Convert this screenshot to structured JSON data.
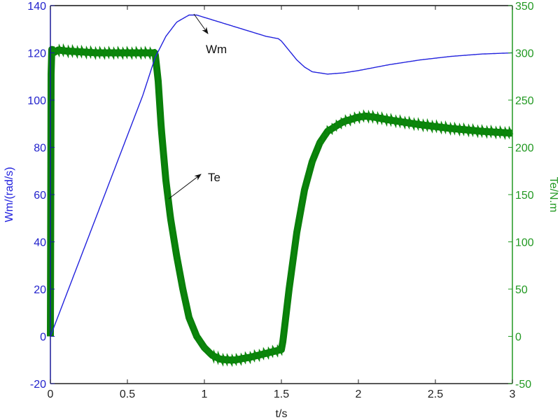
{
  "chart_data": {
    "type": "line",
    "title": "",
    "xlabel": "t/s",
    "xlim": [
      0,
      3
    ],
    "x_ticks": [
      0,
      0.5,
      1,
      1.5,
      2,
      2.5,
      3
    ],
    "x_tick_labels": [
      "0",
      "0.5",
      "1",
      "1.5",
      "2",
      "2.5",
      "3"
    ],
    "y_left": {
      "label": "Wm/(rad/s)",
      "ylim": [
        -20,
        140
      ],
      "ticks": [
        -20,
        0,
        20,
        40,
        60,
        80,
        100,
        120,
        140
      ],
      "tick_labels": [
        "-20",
        "0",
        "20",
        "40",
        "60",
        "80",
        "100",
        "120",
        "140"
      ],
      "color": "#0000ff"
    },
    "y_right": {
      "label": "Te/N.m",
      "ylim": [
        -50,
        350
      ],
      "ticks": [
        -50,
        0,
        50,
        100,
        150,
        200,
        250,
        300,
        350
      ],
      "tick_labels": [
        "-50",
        "0",
        "50",
        "100",
        "150",
        "200",
        "250",
        "300",
        "350"
      ],
      "color": "#008000"
    },
    "grid": false,
    "series": [
      {
        "name": "Wm",
        "axis": "left",
        "color": "#2222dd",
        "x": [
          0,
          0.1,
          0.2,
          0.3,
          0.4,
          0.5,
          0.6,
          0.68,
          0.75,
          0.82,
          0.9,
          0.95,
          1.0,
          1.1,
          1.2,
          1.3,
          1.4,
          1.48,
          1.5,
          1.55,
          1.6,
          1.65,
          1.7,
          1.8,
          1.9,
          2.0,
          2.2,
          2.4,
          2.6,
          2.8,
          3.0
        ],
        "values": [
          0,
          17,
          34,
          51,
          68,
          85,
          102,
          118,
          127,
          133,
          136,
          136,
          135,
          133,
          131,
          129,
          127,
          126,
          125,
          121,
          117,
          114,
          112,
          111,
          111.5,
          112.5,
          115,
          117,
          118.5,
          119.5,
          120
        ]
      },
      {
        "name": "Te",
        "axis": "right",
        "color": "#008000",
        "band_width": 10,
        "x": [
          0,
          0.005,
          0.02,
          0.05,
          0.1,
          0.2,
          0.3,
          0.4,
          0.5,
          0.6,
          0.68,
          0.7,
          0.72,
          0.75,
          0.78,
          0.82,
          0.86,
          0.9,
          0.95,
          1.0,
          1.05,
          1.1,
          1.15,
          1.2,
          1.3,
          1.4,
          1.5,
          1.51,
          1.55,
          1.6,
          1.65,
          1.7,
          1.75,
          1.8,
          1.9,
          2.0,
          2.05,
          2.1,
          2.2,
          2.4,
          2.6,
          2.8,
          3.0
        ],
        "values": [
          0,
          305,
          300,
          303,
          302,
          301,
          300,
          300,
          300,
          300,
          300,
          270,
          220,
          165,
          125,
          85,
          50,
          20,
          0,
          -12,
          -20,
          -24,
          -25,
          -25,
          -22,
          -18,
          -14,
          -5,
          50,
          110,
          155,
          185,
          205,
          217,
          227,
          232,
          233,
          232,
          229,
          224,
          220,
          217,
          215
        ]
      }
    ],
    "annotations": [
      {
        "text": "Wm",
        "points_to": "Wm",
        "arrow_from": [
          0.94,
          136
        ],
        "label_at": [
          1.04,
          122
        ]
      },
      {
        "text": "Te",
        "points_to": "Te",
        "arrow_from": [
          0.77,
          147
        ],
        "label_at": [
          1.0,
          168
        ]
      }
    ],
    "legend": null
  }
}
